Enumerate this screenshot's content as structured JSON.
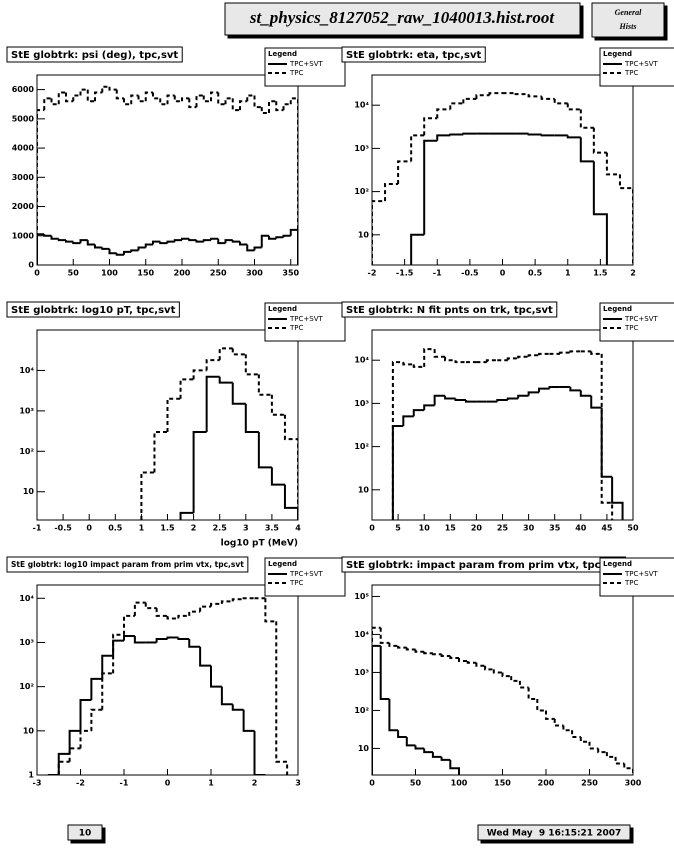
{
  "header": {
    "title": "st_physics_8127052_raw_1040013.hist.root",
    "badge": [
      "General",
      "Hists"
    ]
  },
  "footer": {
    "page": "10",
    "date": "Wed May  9 16:15:21 2007"
  },
  "chart_data": [
    {
      "type": "histogram",
      "title": "StE globtrk: psi (deg), tpc,svt",
      "legend_title": "Legend",
      "log_y": false,
      "bins": [
        0,
        10,
        20,
        30,
        40,
        50,
        60,
        70,
        80,
        90,
        100,
        110,
        120,
        130,
        140,
        150,
        160,
        170,
        180,
        190,
        200,
        210,
        220,
        230,
        240,
        250,
        260,
        270,
        280,
        290,
        300,
        310,
        320,
        330,
        340,
        350,
        360
      ],
      "xlim": [
        0,
        360
      ],
      "ylim": [
        0,
        6500
      ],
      "xticks": [
        0,
        50,
        100,
        150,
        200,
        250,
        300,
        350
      ],
      "yticks": [
        0,
        1000,
        2000,
        3000,
        4000,
        5000,
        6000
      ],
      "series": [
        {
          "name": "TPC+SVT",
          "color": "#000000",
          "style": "solid",
          "values": [
            1050,
            1000,
            900,
            850,
            800,
            750,
            850,
            700,
            600,
            550,
            400,
            350,
            450,
            500,
            600,
            700,
            800,
            750,
            800,
            850,
            900,
            850,
            800,
            850,
            900,
            750,
            850,
            800,
            700,
            500,
            600,
            1000,
            900,
            950,
            1000,
            1200
          ]
        },
        {
          "name": "TPC",
          "color": "#000000",
          "style": "dashed",
          "values": [
            5300,
            5700,
            5500,
            5900,
            5600,
            5800,
            6000,
            5600,
            5900,
            6100,
            6000,
            5700,
            5500,
            5800,
            5600,
            5900,
            5700,
            5500,
            5800,
            5600,
            5700,
            5400,
            5800,
            5600,
            5900,
            5500,
            5700,
            5300,
            5600,
            5800,
            5400,
            5200,
            5600,
            5300,
            5500,
            5700
          ]
        }
      ]
    },
    {
      "type": "histogram",
      "title": "StE globtrk: eta, tpc,svt",
      "legend_title": "Legend",
      "log_y": true,
      "bins": [
        -2,
        -1.8,
        -1.6,
        -1.4,
        -1.2,
        -1,
        -0.8,
        -0.6,
        -0.4,
        -0.2,
        0,
        0.2,
        0.4,
        0.6,
        0.8,
        1,
        1.2,
        1.4,
        1.6,
        1.8,
        2
      ],
      "xlim": [
        -2,
        2
      ],
      "ylim": [
        2,
        50000
      ],
      "xticks": [
        -2,
        -1.5,
        -1,
        -0.5,
        0,
        0.5,
        1,
        1.5,
        2
      ],
      "yticks": [
        10,
        {
          "value": 100,
          "label": "10²"
        },
        {
          "value": 1000,
          "label": "10³"
        },
        {
          "value": 10000,
          "label": "10⁴"
        }
      ],
      "series": [
        {
          "name": "TPC+SVT",
          "color": "#000000",
          "style": "solid",
          "values": [
            null,
            null,
            null,
            10,
            1500,
            2000,
            2100,
            2200,
            2200,
            2200,
            2200,
            2200,
            2100,
            2000,
            2000,
            1800,
            500,
            30,
            null,
            null
          ]
        },
        {
          "name": "TPC",
          "color": "#000000",
          "style": "dashed",
          "values": [
            60,
            150,
            500,
            2000,
            5000,
            8000,
            11000,
            14000,
            17000,
            19000,
            19000,
            18000,
            16000,
            14000,
            11000,
            8000,
            3000,
            800,
            250,
            120
          ]
        }
      ]
    },
    {
      "type": "histogram",
      "title": "StE globtrk: log10 pT, tpc,svt",
      "legend_title": "Legend",
      "log_y": true,
      "x_label": "log10 pT (MeV)",
      "bins": [
        -1,
        -0.75,
        -0.5,
        -0.25,
        0,
        0.25,
        0.5,
        0.75,
        1,
        1.25,
        1.5,
        1.75,
        2,
        2.25,
        2.5,
        2.75,
        3,
        3.25,
        3.5,
        3.75,
        4
      ],
      "xlim": [
        -1,
        4
      ],
      "ylim": [
        2,
        100000
      ],
      "xticks": [
        -1,
        -0.5,
        0,
        0.5,
        1,
        1.5,
        2,
        2.5,
        3,
        3.5,
        4
      ],
      "yticks": [
        10,
        {
          "value": 100,
          "label": "10²"
        },
        {
          "value": 1000,
          "label": "10³"
        },
        {
          "value": 10000,
          "label": "10⁴"
        }
      ],
      "series": [
        {
          "name": "TPC+SVT",
          "color": "#000000",
          "style": "solid",
          "values": [
            null,
            null,
            null,
            null,
            null,
            null,
            null,
            null,
            null,
            null,
            null,
            3,
            300,
            7000,
            5000,
            1500,
            300,
            40,
            15,
            4
          ]
        },
        {
          "name": "TPC",
          "color": "#000000",
          "style": "dashed",
          "values": [
            null,
            null,
            null,
            null,
            null,
            null,
            null,
            null,
            30,
            300,
            2000,
            6000,
            10000,
            18000,
            35000,
            25000,
            8000,
            2500,
            800,
            200
          ]
        }
      ]
    },
    {
      "type": "histogram",
      "title": "StE globtrk: N fit pnts on trk, tpc,svt",
      "legend_title": "Legend",
      "log_y": true,
      "bins": [
        0,
        2,
        4,
        6,
        8,
        10,
        12,
        14,
        16,
        18,
        20,
        22,
        24,
        26,
        28,
        30,
        32,
        34,
        36,
        38,
        40,
        42,
        44,
        46,
        48,
        50
      ],
      "xlim": [
        0,
        50
      ],
      "ylim": [
        2,
        50000
      ],
      "xticks": [
        0,
        5,
        10,
        15,
        20,
        25,
        30,
        35,
        40,
        45,
        50
      ],
      "yticks": [
        10,
        {
          "value": 100,
          "label": "10²"
        },
        {
          "value": 1000,
          "label": "10³"
        },
        {
          "value": 10000,
          "label": "10⁴"
        }
      ],
      "series": [
        {
          "name": "TPC+SVT",
          "color": "#000000",
          "style": "solid",
          "values": [
            null,
            null,
            300,
            500,
            700,
            900,
            1500,
            1300,
            1200,
            1100,
            1100,
            1100,
            1200,
            1300,
            1500,
            1800,
            2200,
            2400,
            2400,
            2000,
            1500,
            800,
            20,
            5,
            null
          ]
        },
        {
          "name": "TPC",
          "color": "#000000",
          "style": "dashed",
          "values": [
            null,
            null,
            9000,
            8000,
            7000,
            18000,
            12000,
            10000,
            9000,
            9000,
            9000,
            10000,
            10000,
            11000,
            12000,
            13000,
            14000,
            14000,
            15000,
            16000,
            16000,
            14000,
            5,
            null,
            null
          ]
        }
      ]
    },
    {
      "type": "histogram",
      "title": "StE globtrk: log10 impact param from prim vtx, tpc,svt",
      "legend_title": "Legend",
      "log_y": true,
      "small_title": true,
      "bins": [
        -3,
        -2.75,
        -2.5,
        -2.25,
        -2,
        -1.75,
        -1.5,
        -1.25,
        -1,
        -0.75,
        -0.5,
        -0.25,
        0,
        0.25,
        0.5,
        0.75,
        1,
        1.25,
        1.5,
        1.75,
        2,
        2.25,
        2.5,
        2.75,
        3
      ],
      "xlim": [
        -3,
        3
      ],
      "ylim": [
        1,
        20000
      ],
      "xticks": [
        -3,
        -2,
        -1,
        0,
        1,
        2,
        3
      ],
      "yticks": [
        1,
        10,
        {
          "value": 100,
          "label": "10²"
        },
        {
          "value": 1000,
          "label": "10³"
        },
        {
          "value": 10000,
          "label": "10⁴"
        }
      ],
      "series": [
        {
          "name": "TPC+SVT",
          "color": "#000000",
          "style": "solid",
          "values": [
            null,
            1,
            3,
            10,
            50,
            150,
            500,
            1100,
            1400,
            1000,
            1000,
            1200,
            1300,
            1200,
            800,
            300,
            100,
            40,
            30,
            10,
            1,
            null,
            null,
            null
          ]
        },
        {
          "name": "TPC",
          "color": "#000000",
          "style": "dashed",
          "values": [
            null,
            null,
            2,
            4,
            10,
            30,
            200,
            1500,
            4000,
            8000,
            6000,
            4000,
            3500,
            4000,
            5000,
            6500,
            7500,
            8500,
            9500,
            10000,
            10000,
            3000,
            2,
            null
          ]
        }
      ]
    },
    {
      "type": "histogram",
      "title": "StE globtrk: impact param from prim vtx, tpc,svt",
      "legend_title": "Legend",
      "log_y": true,
      "bins": [
        0,
        10,
        20,
        30,
        40,
        50,
        60,
        70,
        80,
        90,
        100,
        110,
        120,
        130,
        140,
        150,
        160,
        170,
        180,
        190,
        200,
        210,
        220,
        230,
        240,
        250,
        260,
        270,
        280,
        290,
        300
      ],
      "xlim": [
        0,
        300
      ],
      "ylim": [
        2,
        200000
      ],
      "xticks": [
        0,
        50,
        100,
        150,
        200,
        250,
        300
      ],
      "yticks": [
        10,
        {
          "value": 100,
          "label": "10²"
        },
        {
          "value": 1000,
          "label": "10³"
        },
        {
          "value": 10000,
          "label": "10⁴"
        },
        {
          "value": 100000,
          "label": "10⁵"
        }
      ],
      "series": [
        {
          "name": "TPC+SVT",
          "color": "#000000",
          "style": "solid",
          "values": [
            5000,
            200,
            30,
            20,
            12,
            10,
            8,
            6,
            5,
            3,
            null,
            null,
            null,
            null,
            null,
            null,
            null,
            null,
            null,
            null,
            null,
            null,
            null,
            null,
            null,
            null,
            null,
            null,
            null,
            null
          ]
        },
        {
          "name": "TPC",
          "color": "#000000",
          "style": "dashed",
          "values": [
            15000,
            6000,
            5000,
            4500,
            4000,
            3500,
            3200,
            3000,
            2700,
            2400,
            2000,
            1800,
            1500,
            1200,
            1000,
            800,
            600,
            400,
            200,
            100,
            60,
            40,
            30,
            20,
            15,
            10,
            8,
            6,
            4,
            3
          ]
        }
      ]
    }
  ]
}
